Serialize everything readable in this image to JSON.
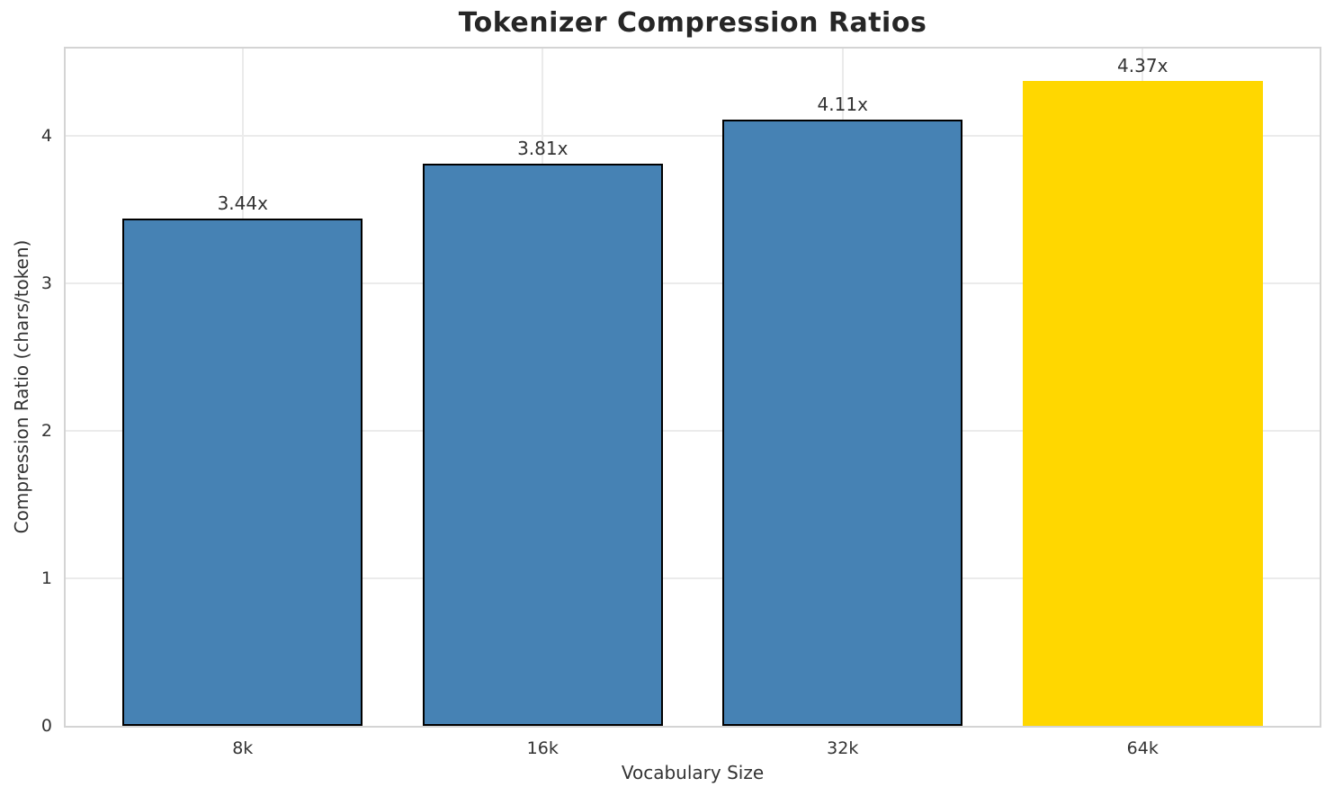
{
  "chart_data": {
    "type": "bar",
    "title": "Tokenizer Compression Ratios",
    "xlabel": "Vocabulary Size",
    "ylabel": "Compression Ratio (chars/token)",
    "categories": [
      "8k",
      "16k",
      "32k",
      "64k"
    ],
    "values": [
      3.44,
      3.81,
      4.11,
      4.37
    ],
    "bar_labels": [
      "3.44x",
      "3.81x",
      "4.11x",
      "4.37x"
    ],
    "bar_colors": [
      "#4682B4",
      "#4682B4",
      "#4682B4",
      "#FFD700"
    ],
    "bar_edge_colors": [
      "#000000",
      "#000000",
      "#000000",
      "none"
    ],
    "yticks": [
      0,
      1,
      2,
      3,
      4
    ],
    "ylim": [
      0,
      4.59
    ],
    "grid": true,
    "legend": "none",
    "background": "#ffffff",
    "spine_color": "#d4d4d4",
    "grid_color": "#ebebeb"
  }
}
